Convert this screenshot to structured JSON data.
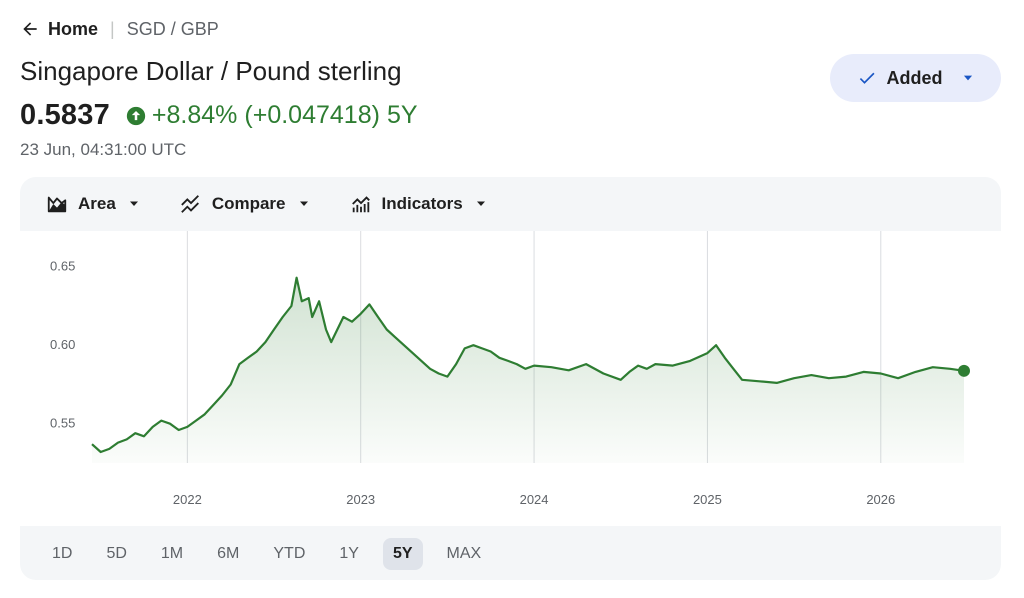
{
  "breadcrumb": {
    "home": "Home",
    "current": "SGD / GBP"
  },
  "title": "Singapore Dollar / Pound sterling",
  "quote": {
    "price": "0.5837",
    "change_pct": "+8.84%",
    "change_abs": "(+0.047418)",
    "period": "5Y",
    "timestamp": "23 Jun, 04:31:00 UTC"
  },
  "watchlist_button": {
    "label": "Added"
  },
  "toolbar": {
    "area": "Area",
    "compare": "Compare",
    "indicators": "Indicators"
  },
  "ranges": [
    "1D",
    "5D",
    "1M",
    "6M",
    "YTD",
    "1Y",
    "5Y",
    "MAX"
  ],
  "active_range": "5Y",
  "colors": {
    "line": "#2e7d32",
    "positive": "#2e7d32",
    "accent_button": "#e8ecfb"
  },
  "chart_data": {
    "type": "area",
    "title": "",
    "xlabel": "",
    "ylabel": "",
    "ylim": [
      0.525,
      0.66
    ],
    "xlim": [
      2021.45,
      2026.48
    ],
    "y_ticks": [
      0.55,
      0.6,
      0.65
    ],
    "x_ticks": [
      "2022",
      "2023",
      "2024",
      "2025",
      "2026"
    ],
    "x_tick_values": [
      2022,
      2023,
      2024,
      2025,
      2026
    ],
    "grid": "vertical",
    "legend": "none",
    "x": [
      2021.45,
      2021.5,
      2021.55,
      2021.6,
      2021.65,
      2021.7,
      2021.75,
      2021.8,
      2021.85,
      2021.9,
      2021.95,
      2022.0,
      2022.05,
      2022.1,
      2022.15,
      2022.2,
      2022.25,
      2022.3,
      2022.35,
      2022.4,
      2022.45,
      2022.5,
      2022.55,
      2022.6,
      2022.63,
      2022.66,
      2022.7,
      2022.72,
      2022.76,
      2022.8,
      2022.83,
      2022.9,
      2022.95,
      2023.0,
      2023.05,
      2023.1,
      2023.15,
      2023.2,
      2023.3,
      2023.4,
      2023.45,
      2023.5,
      2023.55,
      2023.6,
      2023.65,
      2023.7,
      2023.75,
      2023.8,
      2023.85,
      2023.9,
      2023.95,
      2024.0,
      2024.1,
      2024.2,
      2024.3,
      2024.4,
      2024.5,
      2024.55,
      2024.6,
      2024.65,
      2024.7,
      2024.8,
      2024.9,
      2025.0,
      2025.05,
      2025.1,
      2025.15,
      2025.2,
      2025.3,
      2025.4,
      2025.5,
      2025.6,
      2025.7,
      2025.8,
      2025.9,
      2026.0,
      2026.1,
      2026.2,
      2026.3,
      2026.4,
      2026.48
    ],
    "y": [
      0.537,
      0.532,
      0.534,
      0.538,
      0.54,
      0.544,
      0.542,
      0.548,
      0.552,
      0.55,
      0.546,
      0.548,
      0.552,
      0.556,
      0.562,
      0.568,
      0.575,
      0.588,
      0.592,
      0.596,
      0.602,
      0.61,
      0.618,
      0.625,
      0.643,
      0.628,
      0.63,
      0.618,
      0.628,
      0.61,
      0.602,
      0.618,
      0.615,
      0.62,
      0.626,
      0.618,
      0.61,
      0.605,
      0.595,
      0.585,
      0.582,
      0.58,
      0.588,
      0.598,
      0.6,
      0.598,
      0.596,
      0.592,
      0.59,
      0.588,
      0.585,
      0.587,
      0.586,
      0.584,
      0.588,
      0.582,
      0.578,
      0.583,
      0.587,
      0.585,
      0.588,
      0.587,
      0.59,
      0.595,
      0.6,
      0.592,
      0.585,
      0.578,
      0.577,
      0.576,
      0.579,
      0.581,
      0.579,
      0.58,
      0.583,
      0.582,
      0.579,
      0.583,
      0.586,
      0.585,
      0.5837
    ]
  }
}
